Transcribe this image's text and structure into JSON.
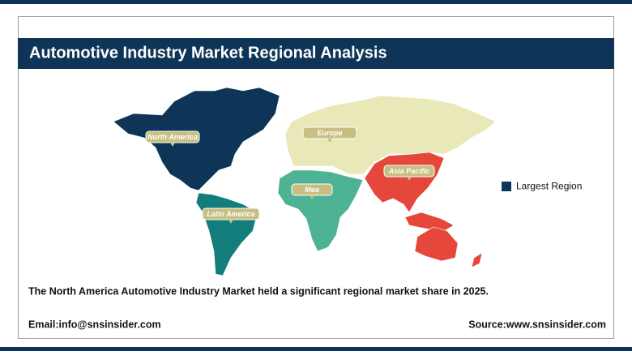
{
  "header": {
    "title": "Automotive Industry Market Regional Analysis"
  },
  "map": {
    "regions": [
      {
        "name": "North America",
        "color": "#0e3557"
      },
      {
        "name": "Europe",
        "color": "#e9e8b8"
      },
      {
        "name": "Asia Pacific",
        "color": "#e5473a"
      },
      {
        "name": "Mea",
        "color": "#4db394"
      },
      {
        "name": "Latin America",
        "color": "#127d7a"
      }
    ],
    "legend": {
      "label": "Largest Region",
      "color": "#0e3557"
    }
  },
  "caption": "The North America Automotive Industry Market held a significant regional market share in 2025.",
  "footer": {
    "email": "Email:info@snsinsider.com",
    "source": "Source:www.snsinsider.com"
  }
}
